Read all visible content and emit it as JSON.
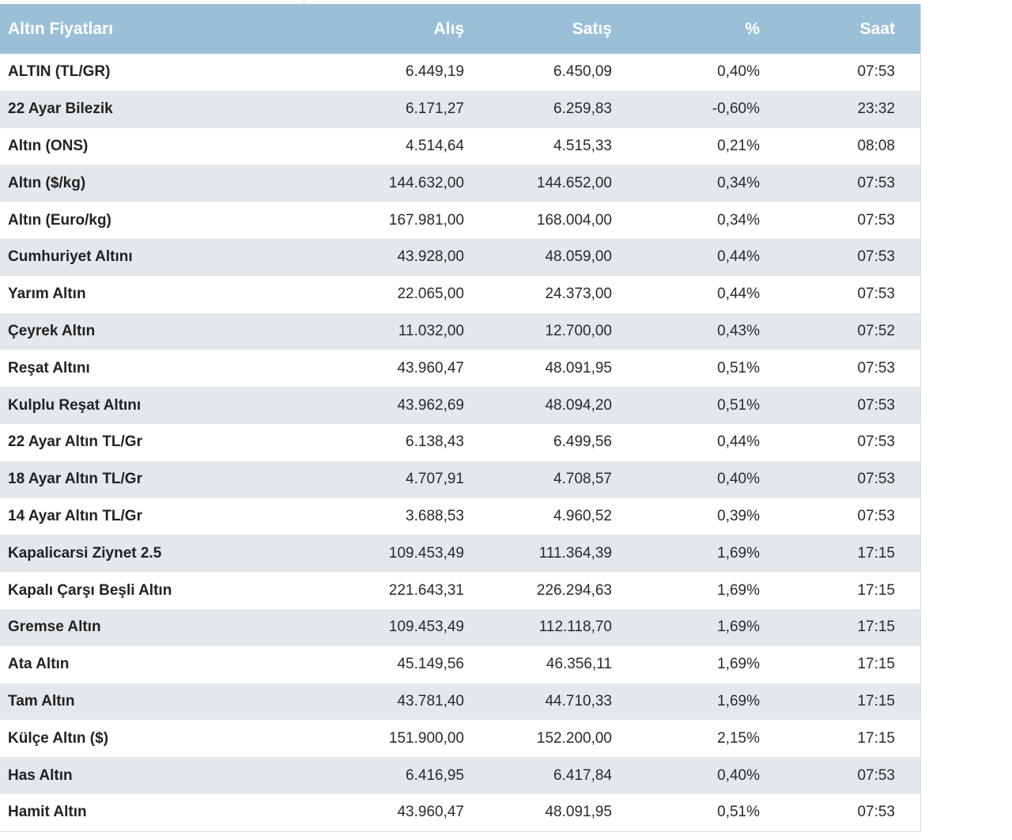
{
  "table": {
    "headers": {
      "name": "Altın Fiyatları",
      "buy": "Alış",
      "sell": "Satış",
      "pct": "%",
      "time": "Saat"
    },
    "rows": [
      {
        "name": "ALTIN (TL/GR)",
        "buy": "6.449,19",
        "sell": "6.450,09",
        "pct": "0,40%",
        "time": "07:53"
      },
      {
        "name": "22 Ayar Bilezik",
        "buy": "6.171,27",
        "sell": "6.259,83",
        "pct": "-0,60%",
        "time": "23:32"
      },
      {
        "name": "Altın (ONS)",
        "buy": "4.514,64",
        "sell": "4.515,33",
        "pct": "0,21%",
        "time": "08:08"
      },
      {
        "name": "Altın ($/kg)",
        "buy": "144.632,00",
        "sell": "144.652,00",
        "pct": "0,34%",
        "time": "07:53"
      },
      {
        "name": "Altın (Euro/kg)",
        "buy": "167.981,00",
        "sell": "168.004,00",
        "pct": "0,34%",
        "time": "07:53"
      },
      {
        "name": "Cumhuriyet Altını",
        "buy": "43.928,00",
        "sell": "48.059,00",
        "pct": "0,44%",
        "time": "07:53"
      },
      {
        "name": "Yarım Altın",
        "buy": "22.065,00",
        "sell": "24.373,00",
        "pct": "0,44%",
        "time": "07:53"
      },
      {
        "name": "Çeyrek Altın",
        "buy": "11.032,00",
        "sell": "12.700,00",
        "pct": "0,43%",
        "time": "07:52"
      },
      {
        "name": "Reşat Altını",
        "buy": "43.960,47",
        "sell": "48.091,95",
        "pct": "0,51%",
        "time": "07:53"
      },
      {
        "name": "Kulplu Reşat Altını",
        "buy": "43.962,69",
        "sell": "48.094,20",
        "pct": "0,51%",
        "time": "07:53"
      },
      {
        "name": "22 Ayar Altın TL/Gr",
        "buy": "6.138,43",
        "sell": "6.499,56",
        "pct": "0,44%",
        "time": "07:53"
      },
      {
        "name": "18 Ayar Altın TL/Gr",
        "buy": "4.707,91",
        "sell": "4.708,57",
        "pct": "0,40%",
        "time": "07:53"
      },
      {
        "name": "14 Ayar Altın TL/Gr",
        "buy": "3.688,53",
        "sell": "4.960,52",
        "pct": "0,39%",
        "time": "07:53"
      },
      {
        "name": "Kapalicarsi Ziynet 2.5",
        "buy": "109.453,49",
        "sell": "111.364,39",
        "pct": "1,69%",
        "time": "17:15"
      },
      {
        "name": "Kapalı Çarşı Beşli Altın",
        "buy": "221.643,31",
        "sell": "226.294,63",
        "pct": "1,69%",
        "time": "17:15"
      },
      {
        "name": "Gremse Altın",
        "buy": "109.453,49",
        "sell": "112.118,70",
        "pct": "1,69%",
        "time": "17:15"
      },
      {
        "name": "Ata Altın",
        "buy": "45.149,56",
        "sell": "46.356,11",
        "pct": "1,69%",
        "time": "17:15"
      },
      {
        "name": "Tam Altın",
        "buy": "43.781,40",
        "sell": "44.710,33",
        "pct": "1,69%",
        "time": "17:15"
      },
      {
        "name": "Külçe Altın ($)",
        "buy": "151.900,00",
        "sell": "152.200,00",
        "pct": "2,15%",
        "time": "17:15"
      },
      {
        "name": "Has Altın",
        "buy": "6.416,95",
        "sell": "6.417,84",
        "pct": "0,40%",
        "time": "07:53"
      },
      {
        "name": "Hamit Altın",
        "buy": "43.960,47",
        "sell": "48.091,95",
        "pct": "0,51%",
        "time": "07:53"
      }
    ]
  },
  "colors": {
    "header_bg": "#9bbfd6",
    "row_alt_bg": "#e3e8ec",
    "row_bg": "#ffffff",
    "text": "#2a2a2a"
  }
}
